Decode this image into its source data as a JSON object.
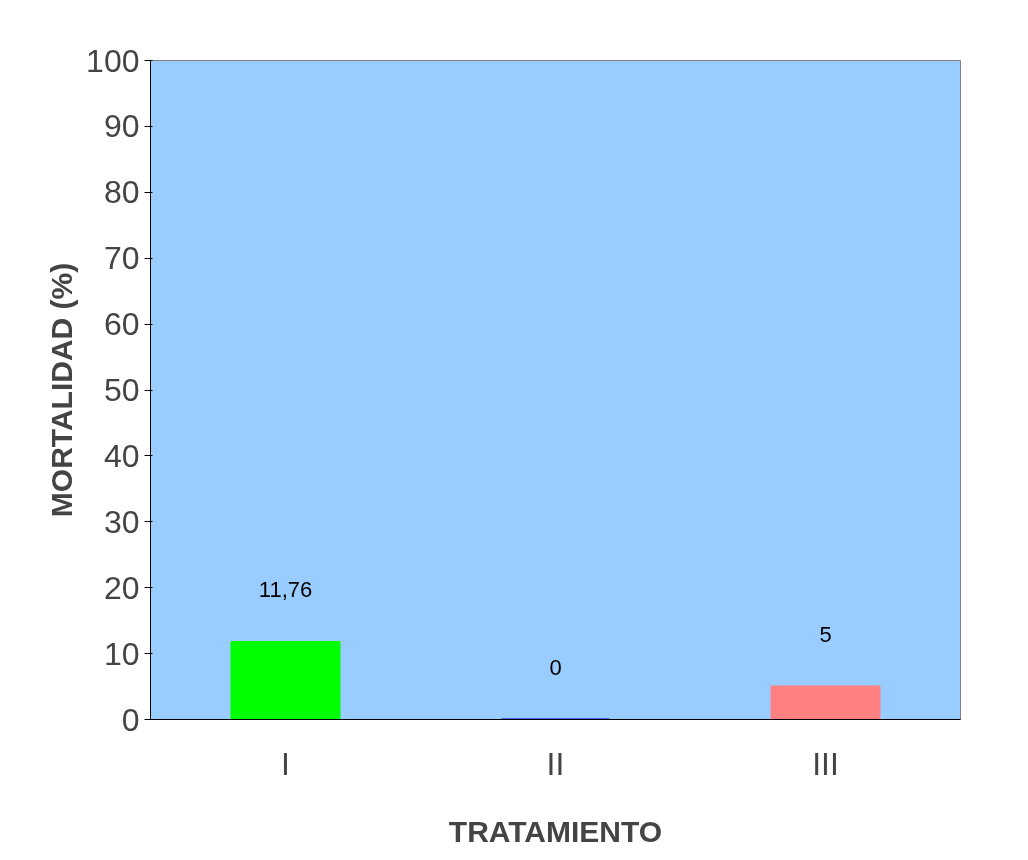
{
  "chart_data": {
    "type": "bar",
    "xlabel": "TRATAMIENTO",
    "ylabel": "MORTALIDAD (%)",
    "categories": [
      "I",
      "II",
      "III"
    ],
    "values": [
      11.76,
      0,
      5
    ],
    "colors": [
      "#00ff00",
      "#0000c0",
      "#ff8080"
    ],
    "value_labels": [
      "11,76",
      "0",
      "5"
    ],
    "ylim": [
      0,
      100
    ],
    "yticks": [
      0,
      10,
      20,
      30,
      40,
      50,
      60,
      70,
      80,
      90,
      100
    ],
    "grid": false
  }
}
